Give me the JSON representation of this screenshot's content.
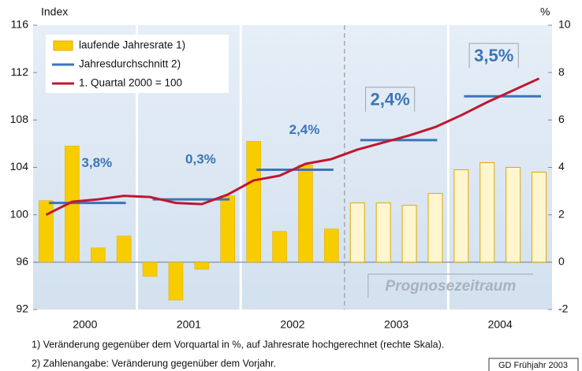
{
  "chart_data": {
    "type": "bar_line",
    "y_label": "Index",
    "y2_label": "%",
    "ylim": [
      92,
      116
    ],
    "yticks": [
      92,
      96,
      100,
      104,
      108,
      112,
      116
    ],
    "y2lim": [
      -2,
      10
    ],
    "y2ticks": [
      -2,
      0,
      2,
      4,
      6,
      8,
      10
    ],
    "categories": [
      "2000",
      "2001",
      "2002",
      "2003",
      "2004"
    ],
    "series": [
      {
        "name": "laufende Jahresrate 1)",
        "type": "bar",
        "axis": "y2",
        "color": "#f7cd00",
        "edge_color": "#e0a800",
        "colors": [
          "#f7cd00",
          "#f7cd00",
          "#f7cd00",
          "#fff6cf",
          "#fff6cf"
        ],
        "values": [
          [
            2.6,
            4.9,
            0.6,
            1.1
          ],
          [
            -0.6,
            -1.6,
            -0.3,
            2.8
          ],
          [
            5.1,
            1.3,
            4.1,
            1.4
          ],
          [
            2.5,
            2.5,
            2.4,
            2.9
          ],
          [
            3.9,
            4.2,
            4.0,
            3.8
          ]
        ]
      },
      {
        "name": "Jahresdurchschnitt 2)",
        "type": "hline",
        "color": "#3a75b8",
        "values": [
          101.0,
          101.3,
          103.8,
          106.3,
          110.0
        ],
        "annual_rates": [
          "3,8%",
          "0,3%",
          "2,4%",
          "2,4%",
          "3,5%"
        ]
      },
      {
        "name": "1. Quartal 2000 = 100",
        "type": "line",
        "color": "#c0172f",
        "values": [
          [
            100.0,
            101.1,
            101.3,
            101.6
          ],
          [
            101.5,
            101.0,
            100.9,
            101.7
          ],
          [
            102.9,
            103.3,
            104.3,
            104.7
          ],
          [
            105.5,
            106.1,
            106.7,
            107.4
          ],
          [
            108.4,
            109.5,
            110.5,
            111.5
          ]
        ]
      }
    ],
    "forecast_label": "Prognosezeitraum",
    "footnotes": [
      "1) Veränderung gegenüber dem Vorquartal in %, auf Jahresrate hochgerechnet (rechte Skala).",
      "2) Zahlenangabe: Veränderung gegenüber dem Vorjahr."
    ],
    "source": "GD Frühjahr 2003"
  }
}
